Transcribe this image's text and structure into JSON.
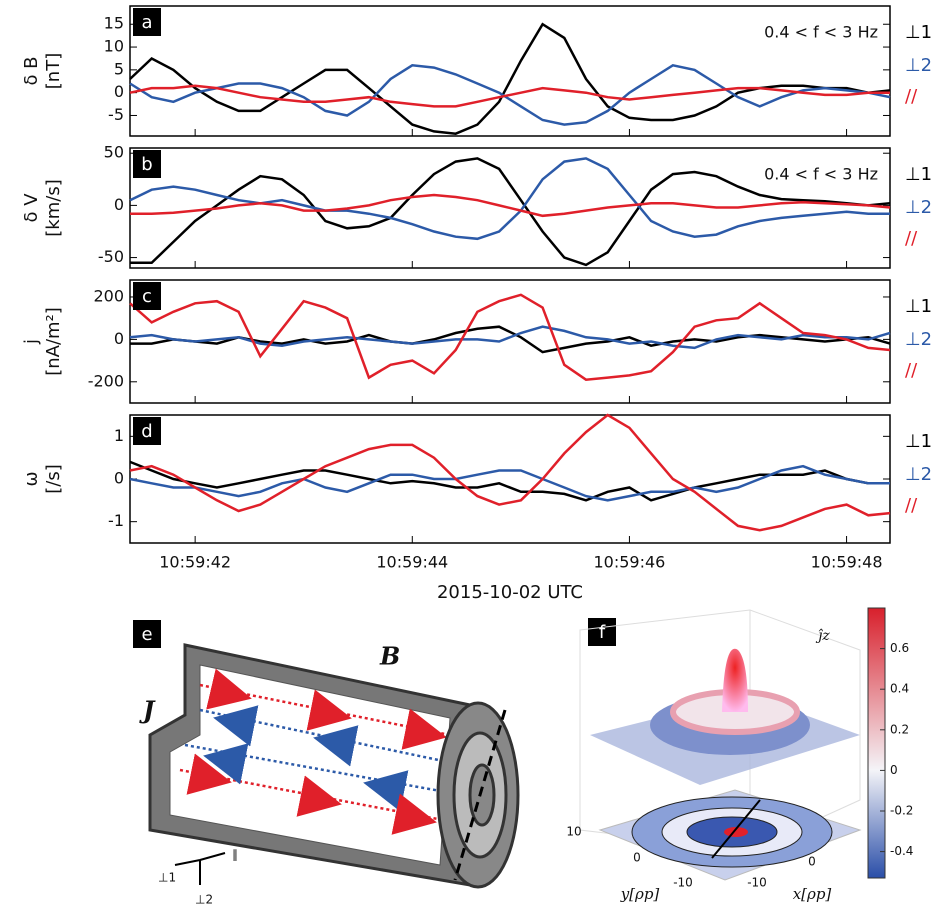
{
  "chart_data": [
    {
      "type": "line",
      "label": "a",
      "ylabel": [
        "δ B",
        "[nT]"
      ],
      "annotation": "0.4 < f < 3 Hz",
      "xlim": [
        41.4,
        48.4
      ],
      "xticks": [
        42,
        44,
        46,
        48
      ],
      "ylim": [
        -9.5,
        19
      ],
      "yticks": [
        -5,
        0,
        5,
        10,
        15
      ],
      "x": [
        41.4,
        41.6,
        41.8,
        42.0,
        42.2,
        42.4,
        42.6,
        42.8,
        43.0,
        43.2,
        43.4,
        43.6,
        43.8,
        44.0,
        44.2,
        44.4,
        44.6,
        44.8,
        45.0,
        45.2,
        45.4,
        45.6,
        45.8,
        46.0,
        46.2,
        46.4,
        46.6,
        46.8,
        47.0,
        47.2,
        47.4,
        47.6,
        47.8,
        48.0,
        48.2,
        48.4
      ],
      "series": [
        {
          "name": "⊥1",
          "color": "#000000",
          "values": [
            3,
            7.5,
            5,
            1,
            -2,
            -4,
            -4,
            -1,
            2,
            5,
            5,
            1,
            -3,
            -7,
            -8.5,
            -9,
            -7,
            -2,
            7,
            15,
            12,
            3,
            -3,
            -5.5,
            -6,
            -6,
            -5,
            -3,
            0,
            1,
            1.5,
            1.5,
            1,
            1,
            0,
            0.5
          ]
        },
        {
          "name": "⊥2",
          "color": "#2c5aa8",
          "values": [
            2,
            -1,
            -2,
            0,
            1,
            2,
            2,
            1,
            -1,
            -4,
            -5,
            -2,
            3,
            6,
            5.5,
            4,
            2,
            0,
            -3,
            -6,
            -7,
            -6.5,
            -4,
            0,
            3,
            6,
            5,
            2,
            -1,
            -3,
            -1,
            0.5,
            1,
            0.5,
            0,
            -1
          ]
        },
        {
          "name": "//",
          "color": "#e0202a",
          "values": [
            0,
            1,
            1,
            1.5,
            1,
            0,
            -1,
            -1.5,
            -2,
            -2,
            -1.5,
            -1,
            -2,
            -2.5,
            -3,
            -3,
            -2,
            -1,
            0,
            1,
            0.5,
            0,
            -1,
            -1.5,
            -1,
            -0.5,
            0,
            0.5,
            1,
            1,
            0.5,
            0,
            -0.5,
            -0.5,
            0,
            0
          ]
        }
      ]
    },
    {
      "type": "line",
      "label": "b",
      "ylabel": [
        "δ V",
        "[km/s]"
      ],
      "annotation": "0.4 < f < 3 Hz",
      "xlim": [
        41.4,
        48.4
      ],
      "xticks": [
        42,
        44,
        46,
        48
      ],
      "ylim": [
        -60,
        55
      ],
      "yticks": [
        -50,
        0,
        50
      ],
      "x": [
        41.4,
        41.6,
        41.8,
        42.0,
        42.2,
        42.4,
        42.6,
        42.8,
        43.0,
        43.2,
        43.4,
        43.6,
        43.8,
        44.0,
        44.2,
        44.4,
        44.6,
        44.8,
        45.0,
        45.2,
        45.4,
        45.6,
        45.8,
        46.0,
        46.2,
        46.4,
        46.6,
        46.8,
        47.0,
        47.2,
        47.4,
        47.6,
        47.8,
        48.0,
        48.2,
        48.4
      ],
      "series": [
        {
          "name": "⊥1",
          "color": "#000000",
          "values": [
            -55,
            -55,
            -35,
            -15,
            0,
            15,
            28,
            25,
            10,
            -15,
            -22,
            -20,
            -12,
            10,
            30,
            42,
            45,
            35,
            5,
            -25,
            -50,
            -57,
            -45,
            -15,
            15,
            30,
            32,
            28,
            18,
            10,
            6,
            5,
            4,
            2,
            0,
            2
          ]
        },
        {
          "name": "⊥2",
          "color": "#2c5aa8",
          "values": [
            5,
            15,
            18,
            15,
            10,
            5,
            2,
            5,
            0,
            -5,
            -5,
            -8,
            -12,
            -18,
            -25,
            -30,
            -32,
            -25,
            -5,
            25,
            42,
            45,
            35,
            10,
            -15,
            -25,
            -30,
            -28,
            -20,
            -15,
            -12,
            -10,
            -8,
            -6,
            -8,
            -8
          ]
        },
        {
          "name": "//",
          "color": "#e0202a",
          "values": [
            -8,
            -8,
            -7,
            -5,
            -3,
            0,
            2,
            0,
            -5,
            -5,
            -3,
            0,
            5,
            8,
            10,
            8,
            5,
            0,
            -5,
            -10,
            -8,
            -5,
            -2,
            0,
            2,
            2,
            0,
            -2,
            -2,
            0,
            2,
            3,
            2,
            1,
            0,
            -2
          ]
        }
      ]
    },
    {
      "type": "line",
      "label": "c",
      "ylabel": [
        "j",
        "[nA/m²]"
      ],
      "xlim": [
        41.4,
        48.4
      ],
      "xticks": [
        42,
        44,
        46,
        48
      ],
      "ylim": [
        -300,
        280
      ],
      "yticks": [
        -200,
        0,
        200
      ],
      "x": [
        41.4,
        41.6,
        41.8,
        42.0,
        42.2,
        42.4,
        42.6,
        42.8,
        43.0,
        43.2,
        43.4,
        43.6,
        43.8,
        44.0,
        44.2,
        44.4,
        44.6,
        44.8,
        45.0,
        45.2,
        45.4,
        45.6,
        45.8,
        46.0,
        46.2,
        46.4,
        46.6,
        46.8,
        47.0,
        47.2,
        47.4,
        47.6,
        47.8,
        48.0,
        48.2,
        48.4
      ],
      "series": [
        {
          "name": "⊥1",
          "color": "#000000",
          "values": [
            -20,
            -20,
            0,
            -10,
            -20,
            10,
            -10,
            -20,
            0,
            -20,
            -10,
            20,
            -10,
            -20,
            0,
            30,
            50,
            60,
            10,
            -60,
            -40,
            -20,
            -10,
            10,
            -30,
            -10,
            0,
            -10,
            10,
            20,
            10,
            0,
            -10,
            0,
            10,
            -20
          ]
        },
        {
          "name": "⊥2",
          "color": "#2c5aa8",
          "values": [
            10,
            20,
            0,
            -10,
            0,
            10,
            -20,
            -30,
            -10,
            0,
            10,
            0,
            -10,
            -20,
            -10,
            0,
            0,
            -10,
            30,
            60,
            40,
            10,
            0,
            -20,
            -10,
            -30,
            -40,
            0,
            20,
            10,
            0,
            20,
            10,
            10,
            0,
            30
          ]
        },
        {
          "name": "//",
          "color": "#e0202a",
          "values": [
            170,
            80,
            130,
            170,
            180,
            130,
            -80,
            50,
            180,
            150,
            100,
            -180,
            -120,
            -100,
            -160,
            -50,
            130,
            180,
            210,
            150,
            -120,
            -190,
            -180,
            -170,
            -150,
            -60,
            60,
            90,
            100,
            170,
            100,
            30,
            20,
            0,
            -40,
            -50
          ]
        }
      ]
    },
    {
      "type": "line",
      "label": "d",
      "ylabel": [
        "ω",
        "[/s]"
      ],
      "xlabel": "2015-10-02 UTC",
      "xlim": [
        41.4,
        48.4
      ],
      "xticks": [
        {
          "value": 42,
          "label": "10:59:42"
        },
        {
          "value": 44,
          "label": "10:59:44"
        },
        {
          "value": 46,
          "label": "10:59:46"
        },
        {
          "value": 48,
          "label": "10:59:48"
        }
      ],
      "ylim": [
        -1.5,
        1.5
      ],
      "yticks": [
        -1,
        0,
        1
      ],
      "x": [
        41.4,
        41.6,
        41.8,
        42.0,
        42.2,
        42.4,
        42.6,
        42.8,
        43.0,
        43.2,
        43.4,
        43.6,
        43.8,
        44.0,
        44.2,
        44.4,
        44.6,
        44.8,
        45.0,
        45.2,
        45.4,
        45.6,
        45.8,
        46.0,
        46.2,
        46.4,
        46.6,
        46.8,
        47.0,
        47.2,
        47.4,
        47.6,
        47.8,
        48.0,
        48.2,
        48.4
      ],
      "series": [
        {
          "name": "⊥1",
          "color": "#000000",
          "values": [
            0.4,
            0.2,
            0,
            -0.1,
            -0.2,
            -0.1,
            0,
            0.1,
            0.2,
            0.2,
            0.1,
            0,
            -0.1,
            -0.05,
            -0.1,
            -0.2,
            -0.2,
            -0.1,
            -0.3,
            -0.3,
            -0.35,
            -0.5,
            -0.3,
            -0.2,
            -0.5,
            -0.35,
            -0.2,
            -0.1,
            0,
            0.1,
            0.1,
            0.1,
            0.2,
            0,
            -0.1,
            -0.1
          ]
        },
        {
          "name": "⊥2",
          "color": "#2c5aa8",
          "values": [
            0,
            -0.1,
            -0.2,
            -0.2,
            -0.3,
            -0.4,
            -0.3,
            -0.1,
            0,
            -0.2,
            -0.3,
            -0.1,
            0.1,
            0.1,
            0,
            0,
            0.1,
            0.2,
            0.2,
            0,
            -0.2,
            -0.4,
            -0.5,
            -0.4,
            -0.3,
            -0.3,
            -0.2,
            -0.3,
            -0.2,
            0,
            0.2,
            0.3,
            0.1,
            0,
            -0.1,
            -0.1
          ]
        },
        {
          "name": "//",
          "color": "#e0202a",
          "values": [
            0.2,
            0.3,
            0.1,
            -0.2,
            -0.5,
            -0.75,
            -0.6,
            -0.3,
            0,
            0.3,
            0.5,
            0.7,
            0.8,
            0.8,
            0.5,
            0,
            -0.4,
            -0.6,
            -0.5,
            0,
            0.6,
            1.1,
            1.5,
            1.2,
            0.6,
            0,
            -0.3,
            -0.7,
            -1.1,
            -1.2,
            -1.1,
            -0.9,
            -0.7,
            -0.6,
            -0.85,
            -0.8
          ]
        }
      ]
    },
    {
      "type": "surface3d",
      "label": "f",
      "title": "ĵz",
      "xlabel": "x[ρp]",
      "ylabel": "y[ρp]",
      "xticks": [
        -10,
        0
      ],
      "yticks": [
        10,
        0,
        -10
      ],
      "clim": [
        -0.53,
        0.8
      ],
      "cticks": [
        -0.4,
        -0.2,
        0,
        0.2,
        0.4,
        0.6
      ]
    }
  ],
  "panel_e": {
    "label": "e",
    "field": "B",
    "current": "J",
    "axes": [
      "⊥1",
      "⊥2",
      "∥"
    ]
  }
}
